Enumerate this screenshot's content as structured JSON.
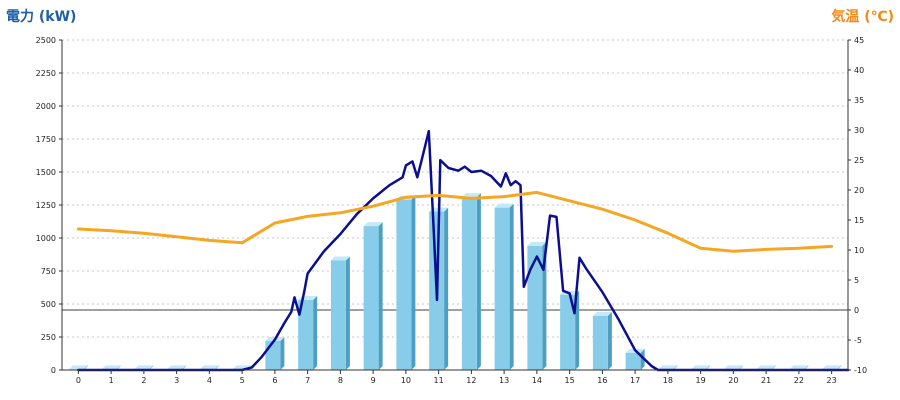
{
  "chart_data": {
    "type": "bar",
    "left_title": "電力 (kW)",
    "right_title": "気温 (℃)",
    "categories": [
      "0",
      "1",
      "2",
      "3",
      "4",
      "5",
      "6",
      "7",
      "8",
      "9",
      "10",
      "11",
      "12",
      "13",
      "14",
      "15",
      "16",
      "17",
      "18",
      "19",
      "20",
      "21",
      "22",
      "23"
    ],
    "y_left": {
      "min": 0,
      "max": 2500,
      "ticks": [
        0,
        250,
        500,
        750,
        1000,
        1250,
        1500,
        1750,
        2000,
        2250,
        2500
      ]
    },
    "y_right": {
      "min": -10,
      "max": 45,
      "ticks": [
        -10,
        -5,
        0,
        5,
        10,
        15,
        20,
        25,
        30,
        35,
        40,
        45
      ]
    },
    "grid": true,
    "series": [
      {
        "kind": "bar",
        "axis": "left",
        "values": [
          5,
          5,
          5,
          5,
          5,
          5,
          220,
          530,
          830,
          1090,
          1290,
          1200,
          1310,
          1230,
          940,
          570,
          410,
          130,
          5,
          5,
          5,
          5,
          5,
          5
        ]
      },
      {
        "kind": "line",
        "axis": "left",
        "points": [
          [
            0,
            0
          ],
          [
            5,
            0
          ],
          [
            5.3,
            20
          ],
          [
            5.6,
            100
          ],
          [
            6,
            230
          ],
          [
            6.3,
            360
          ],
          [
            6.5,
            440
          ],
          [
            6.6,
            550
          ],
          [
            6.75,
            420
          ],
          [
            6.9,
            600
          ],
          [
            7,
            730
          ],
          [
            7.5,
            900
          ],
          [
            8,
            1030
          ],
          [
            8.5,
            1180
          ],
          [
            9,
            1300
          ],
          [
            9.5,
            1400
          ],
          [
            9.9,
            1460
          ],
          [
            10,
            1550
          ],
          [
            10.2,
            1580
          ],
          [
            10.35,
            1460
          ],
          [
            10.5,
            1610
          ],
          [
            10.7,
            1810
          ],
          [
            10.85,
            1060
          ],
          [
            10.95,
            530
          ],
          [
            11,
            1050
          ],
          [
            11.05,
            1590
          ],
          [
            11.3,
            1530
          ],
          [
            11.6,
            1510
          ],
          [
            11.8,
            1540
          ],
          [
            12,
            1500
          ],
          [
            12.3,
            1510
          ],
          [
            12.6,
            1470
          ],
          [
            12.9,
            1390
          ],
          [
            13.05,
            1490
          ],
          [
            13.2,
            1400
          ],
          [
            13.35,
            1430
          ],
          [
            13.5,
            1400
          ],
          [
            13.6,
            630
          ],
          [
            13.8,
            760
          ],
          [
            14,
            860
          ],
          [
            14.2,
            760
          ],
          [
            14.4,
            1170
          ],
          [
            14.6,
            1160
          ],
          [
            14.8,
            600
          ],
          [
            15,
            580
          ],
          [
            15.15,
            430
          ],
          [
            15.3,
            850
          ],
          [
            15.5,
            770
          ],
          [
            16,
            590
          ],
          [
            16.5,
            380
          ],
          [
            17,
            150
          ],
          [
            17.5,
            30
          ],
          [
            17.7,
            0
          ],
          [
            23.5,
            0
          ]
        ]
      },
      {
        "kind": "line",
        "axis": "right",
        "points": [
          [
            0,
            13.5
          ],
          [
            1,
            13.2
          ],
          [
            2,
            12.8
          ],
          [
            3,
            12.2
          ],
          [
            4,
            11.6
          ],
          [
            5,
            11.2
          ],
          [
            6,
            14.5
          ],
          [
            7,
            15.6
          ],
          [
            8,
            16.2
          ],
          [
            9,
            17.3
          ],
          [
            10,
            18.8
          ],
          [
            11,
            19.1
          ],
          [
            12,
            18.6
          ],
          [
            13,
            18.9
          ],
          [
            14,
            19.6
          ],
          [
            15,
            18.2
          ],
          [
            16,
            16.8
          ],
          [
            17,
            15
          ],
          [
            18,
            12.8
          ],
          [
            19,
            10.3
          ],
          [
            20,
            9.8
          ],
          [
            21,
            10.1
          ],
          [
            22,
            10.3
          ],
          [
            23,
            10.6
          ]
        ]
      }
    ]
  },
  "colors": {
    "bar_front": "#87cde9",
    "bar_side": "#4d9ec2",
    "bar_top": "#c4e9f7",
    "power_line": "#0b0f8e",
    "temp_line": "#f5a623",
    "grid": "#b5b5b5",
    "zero_line": "#000000",
    "left_title": "#1f5fa8",
    "right_title": "#f28a1a"
  }
}
